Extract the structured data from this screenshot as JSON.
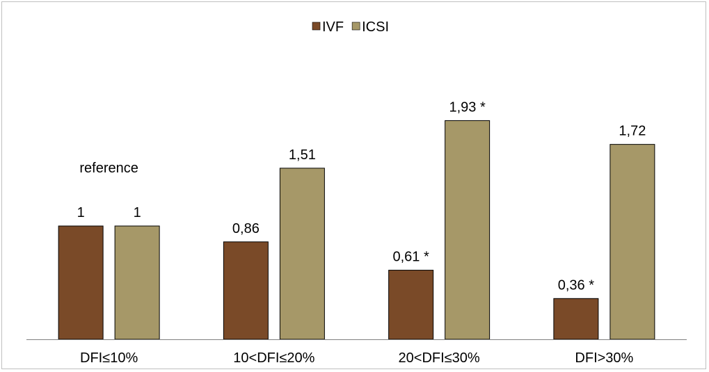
{
  "chart_data": {
    "type": "bar",
    "categories": [
      "DFI≤10%",
      "10<DFI≤20%",
      "20<DFI≤30%",
      "DFI>30%"
    ],
    "series": [
      {
        "name": "IVF",
        "color": "#7a4a28",
        "values": [
          1,
          0.86,
          0.61,
          0.36
        ],
        "labels": [
          "1",
          "0,86",
          "0,61 *",
          "0,36 *"
        ]
      },
      {
        "name": "ICSI",
        "color": "#a69868",
        "values": [
          1,
          1.51,
          1.93,
          1.72
        ],
        "labels": [
          "1",
          "1,51",
          "1,93 *",
          "1,72"
        ]
      }
    ],
    "annotations": [
      {
        "text": "reference",
        "category": "DFI≤10%"
      }
    ],
    "title": "",
    "xlabel": "",
    "ylabel": "",
    "ylim": [
      0,
      2.2
    ],
    "grid": false,
    "legend": "top-center"
  }
}
